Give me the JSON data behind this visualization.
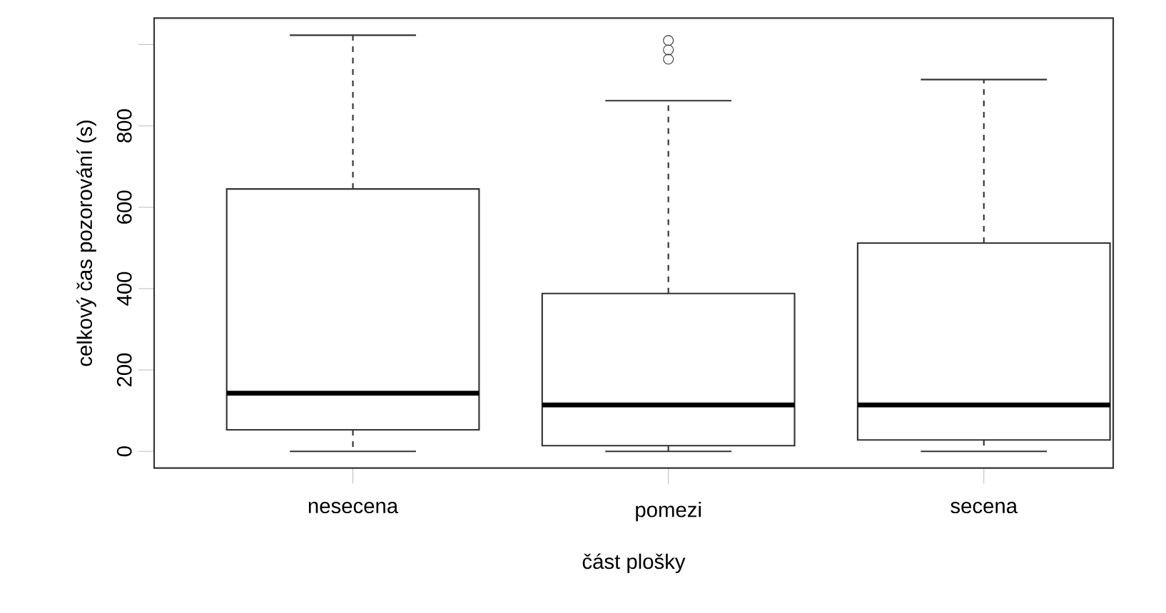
{
  "chart_data": {
    "type": "box",
    "xlabel": "část plošky",
    "ylabel": "celkový čas pozorování (s)",
    "categories": [
      "nesecena",
      "pomezi",
      "secena"
    ],
    "boxes": [
      {
        "low": 0,
        "q1": 53,
        "median": 143,
        "q3": 645,
        "high": 1023
      },
      {
        "low": 0,
        "q1": 14,
        "median": 114,
        "q3": 388,
        "high": 862,
        "outliers": [
          964,
          987,
          1010
        ]
      },
      {
        "low": 0,
        "q1": 28,
        "median": 114,
        "q3": 512,
        "high": 914
      }
    ],
    "ylim": [
      -41,
      1065
    ],
    "yticks": [
      0,
      200,
      400,
      600,
      800,
      {
        "value": 1000,
        "label": null
      }
    ]
  }
}
